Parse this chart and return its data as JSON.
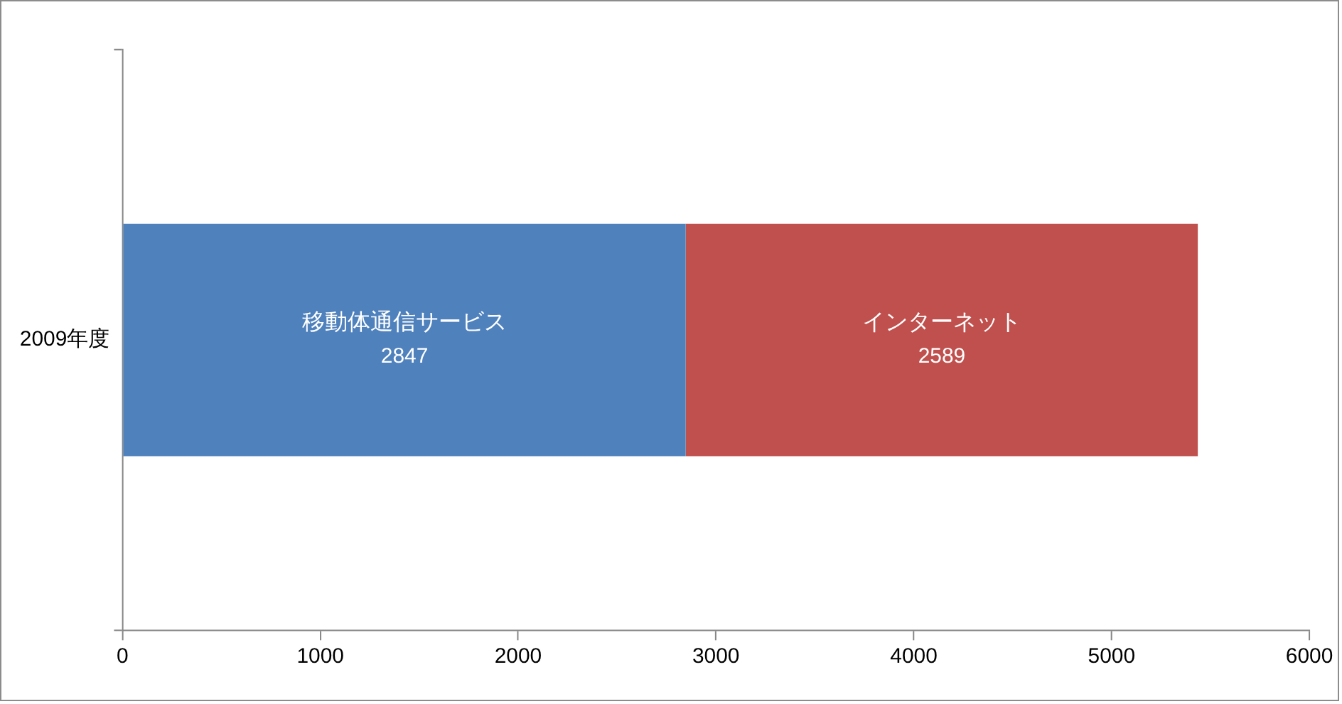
{
  "chart_data": {
    "type": "bar",
    "orientation": "horizontal",
    "stacked": true,
    "categories": [
      "2009年度"
    ],
    "series": [
      {
        "name": "移動体通信サービス",
        "color": "#4f81bd",
        "values": [
          2847
        ]
      },
      {
        "name": "インターネット",
        "color": "#c0504d",
        "values": [
          2589
        ]
      }
    ],
    "xlim": [
      0,
      6000
    ],
    "xticks": [
      0,
      1000,
      2000,
      3000,
      4000,
      5000,
      6000
    ],
    "grid": false,
    "legend": false,
    "data_labels": true
  }
}
